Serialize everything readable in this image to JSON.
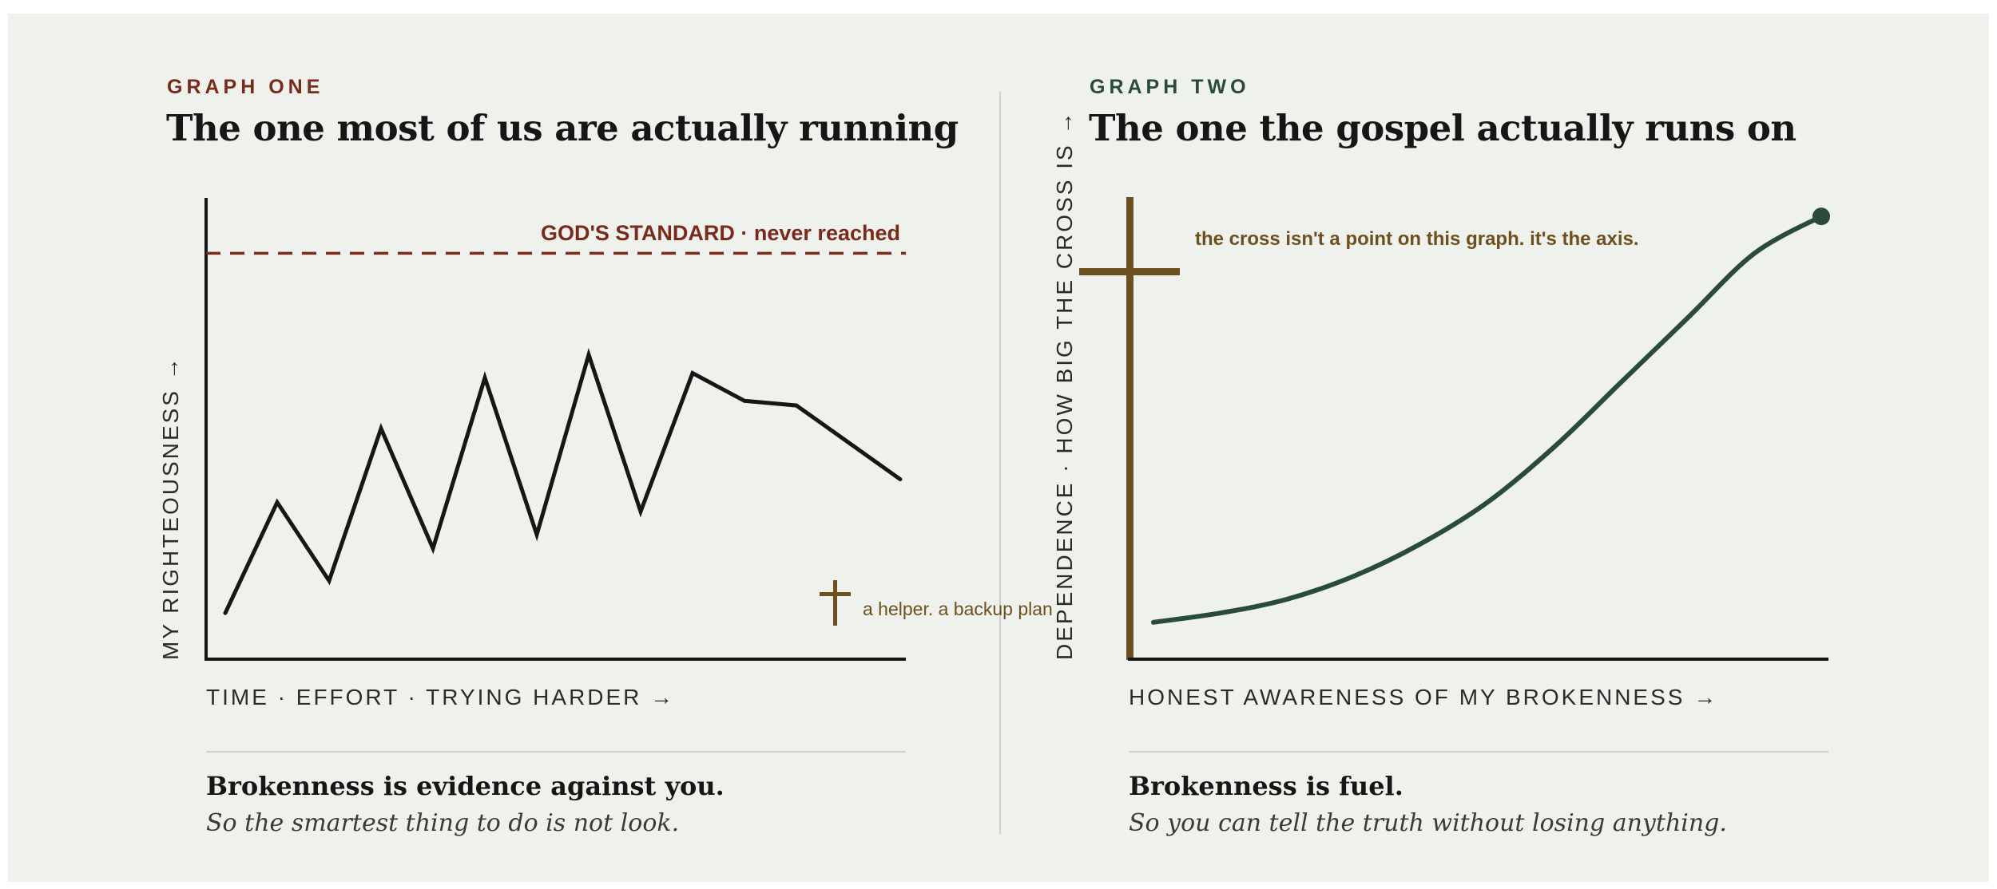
{
  "colors": {
    "background": "#eff2ec",
    "accent_red": "#7a2a1a",
    "accent_green": "#2a4a3a",
    "cross_brown": "#6e4f1f",
    "ink": "#161616"
  },
  "graph_one": {
    "eyebrow": "GRAPH ONE",
    "title": "The one most of us are actually running",
    "standard_label": "GOD'S STANDARD · never reached",
    "y_axis_label": "MY RIGHTEOUSNESS →",
    "x_axis_label": "TIME · EFFORT · TRYING HARDER →",
    "cross_label": "a helper. a backup plan",
    "cross_icon": "cross-icon",
    "caption_title": "Brokenness is evidence against you.",
    "caption_sub": "So the smartest thing to do is not look.",
    "series": {
      "x": [
        0,
        1,
        2,
        3,
        4,
        5,
        6,
        7,
        8,
        9,
        10,
        11,
        12,
        13
      ],
      "y": [
        10,
        34,
        17,
        50,
        24,
        61,
        27,
        66,
        32,
        62,
        56,
        55,
        47,
        39
      ],
      "ylim": [
        0,
        100
      ],
      "standard_level": 88
    }
  },
  "graph_two": {
    "eyebrow": "GRAPH TWO",
    "title": "The one the gospel actually runs on",
    "axis_note": "the cross isn't a point on this graph. it's the axis.",
    "y_axis_label": "DEPENDENCE · HOW BIG THE CROSS IS →",
    "x_axis_label": "HONEST AWARENESS OF MY BROKENNESS →",
    "cross_icon": "cross-icon",
    "caption_title": "Brokenness is fuel.",
    "caption_sub": "So you can tell the truth without losing anything.",
    "curve": {
      "x": [
        0,
        10,
        20,
        30,
        40,
        50,
        60,
        70,
        80,
        90,
        100
      ],
      "y": [
        8,
        10,
        13,
        18,
        25,
        34,
        46,
        60,
        74,
        88,
        96
      ],
      "ylim": [
        0,
        100
      ]
    }
  }
}
